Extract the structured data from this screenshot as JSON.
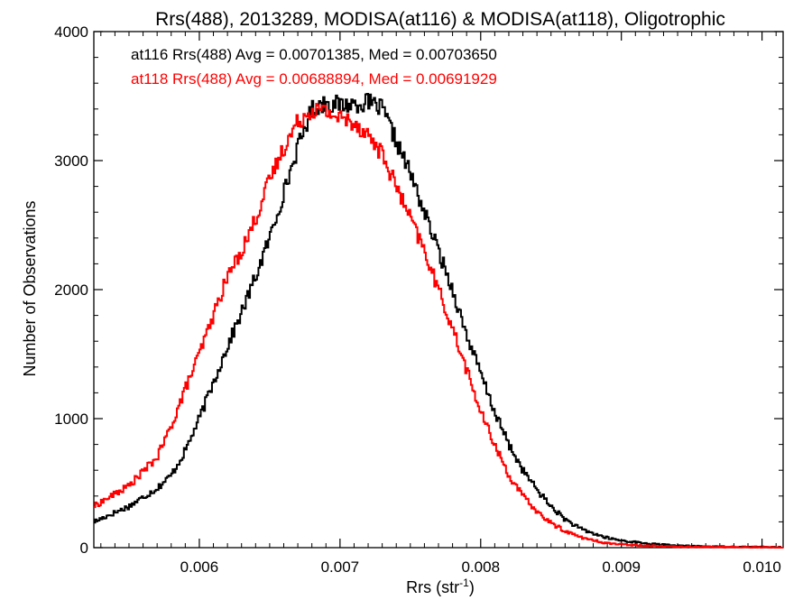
{
  "chart_data": {
    "type": "histogram",
    "title": "Rrs(488), 2013289, MODISA(at116) & MODISA(at118), Oligotrophic",
    "xlabel": "Rrs (str",
    "xlabel_sup": "-1",
    "xlabel_end": ")",
    "ylabel": "Number of Observations",
    "xlim": [
      0.00525,
      0.01015
    ],
    "ylim": [
      0,
      4000
    ],
    "xticks": [
      {
        "v": 0.006,
        "label": "0.006"
      },
      {
        "v": 0.007,
        "label": "0.007"
      },
      {
        "v": 0.008,
        "label": "0.008"
      },
      {
        "v": 0.009,
        "label": "0.009"
      },
      {
        "v": 0.01,
        "label": "0.010"
      }
    ],
    "yticks": [
      {
        "v": 0,
        "label": "0"
      },
      {
        "v": 1000,
        "label": "1000"
      },
      {
        "v": 2000,
        "label": "2000"
      },
      {
        "v": 3000,
        "label": "3000"
      },
      {
        "v": 4000,
        "label": "4000"
      }
    ],
    "step": "histogram",
    "series": [
      {
        "legend": "at116 Rrs(488) Avg = 0.00701385, Med = 0.00703650",
        "color": "#000000",
        "points": [
          [
            0.00525,
            200
          ],
          [
            0.0055,
            320
          ],
          [
            0.0057,
            460
          ],
          [
            0.0058,
            560
          ],
          [
            0.0059,
            750
          ],
          [
            0.006,
            1000
          ],
          [
            0.0061,
            1280
          ],
          [
            0.0062,
            1560
          ],
          [
            0.0063,
            1820
          ],
          [
            0.0064,
            2100
          ],
          [
            0.0065,
            2400
          ],
          [
            0.0066,
            2750
          ],
          [
            0.0067,
            3100
          ],
          [
            0.0068,
            3400
          ],
          [
            0.0069,
            3450
          ],
          [
            0.007,
            3430
          ],
          [
            0.0071,
            3440
          ],
          [
            0.0072,
            3450
          ],
          [
            0.0073,
            3400
          ],
          [
            0.0074,
            3150
          ],
          [
            0.0075,
            2900
          ],
          [
            0.0076,
            2600
          ],
          [
            0.0077,
            2300
          ],
          [
            0.0078,
            2000
          ],
          [
            0.0079,
            1650
          ],
          [
            0.008,
            1350
          ],
          [
            0.0081,
            1050
          ],
          [
            0.0082,
            800
          ],
          [
            0.0083,
            600
          ],
          [
            0.0084,
            450
          ],
          [
            0.0085,
            320
          ],
          [
            0.0086,
            220
          ],
          [
            0.0087,
            150
          ],
          [
            0.0088,
            110
          ],
          [
            0.0089,
            75
          ],
          [
            0.009,
            55
          ],
          [
            0.0092,
            30
          ],
          [
            0.0094,
            15
          ],
          [
            0.0097,
            8
          ],
          [
            0.01,
            5
          ],
          [
            0.01015,
            3
          ]
        ]
      },
      {
        "legend": "at118 Rrs(488) Avg = 0.00688894, Med = 0.00691929",
        "color": "#ff0000",
        "points": [
          [
            0.00525,
            320
          ],
          [
            0.0055,
            480
          ],
          [
            0.0057,
            700
          ],
          [
            0.0058,
            940
          ],
          [
            0.0059,
            1230
          ],
          [
            0.006,
            1500
          ],
          [
            0.0061,
            1800
          ],
          [
            0.0062,
            2100
          ],
          [
            0.0063,
            2300
          ],
          [
            0.0064,
            2550
          ],
          [
            0.0065,
            2850
          ],
          [
            0.0066,
            3100
          ],
          [
            0.0067,
            3300
          ],
          [
            0.0068,
            3400
          ],
          [
            0.0069,
            3380
          ],
          [
            0.007,
            3330
          ],
          [
            0.0071,
            3300
          ],
          [
            0.0072,
            3200
          ],
          [
            0.0073,
            3050
          ],
          [
            0.0074,
            2800
          ],
          [
            0.0075,
            2550
          ],
          [
            0.0076,
            2300
          ],
          [
            0.0077,
            2000
          ],
          [
            0.0078,
            1700
          ],
          [
            0.0079,
            1380
          ],
          [
            0.008,
            1050
          ],
          [
            0.0081,
            800
          ],
          [
            0.0082,
            560
          ],
          [
            0.0083,
            400
          ],
          [
            0.0084,
            280
          ],
          [
            0.0085,
            190
          ],
          [
            0.0086,
            130
          ],
          [
            0.0087,
            85
          ],
          [
            0.0088,
            55
          ],
          [
            0.0089,
            35
          ],
          [
            0.009,
            25
          ],
          [
            0.0092,
            15
          ],
          [
            0.0094,
            8
          ],
          [
            0.0097,
            5
          ],
          [
            0.01,
            3
          ],
          [
            0.01015,
            2
          ]
        ]
      }
    ]
  }
}
